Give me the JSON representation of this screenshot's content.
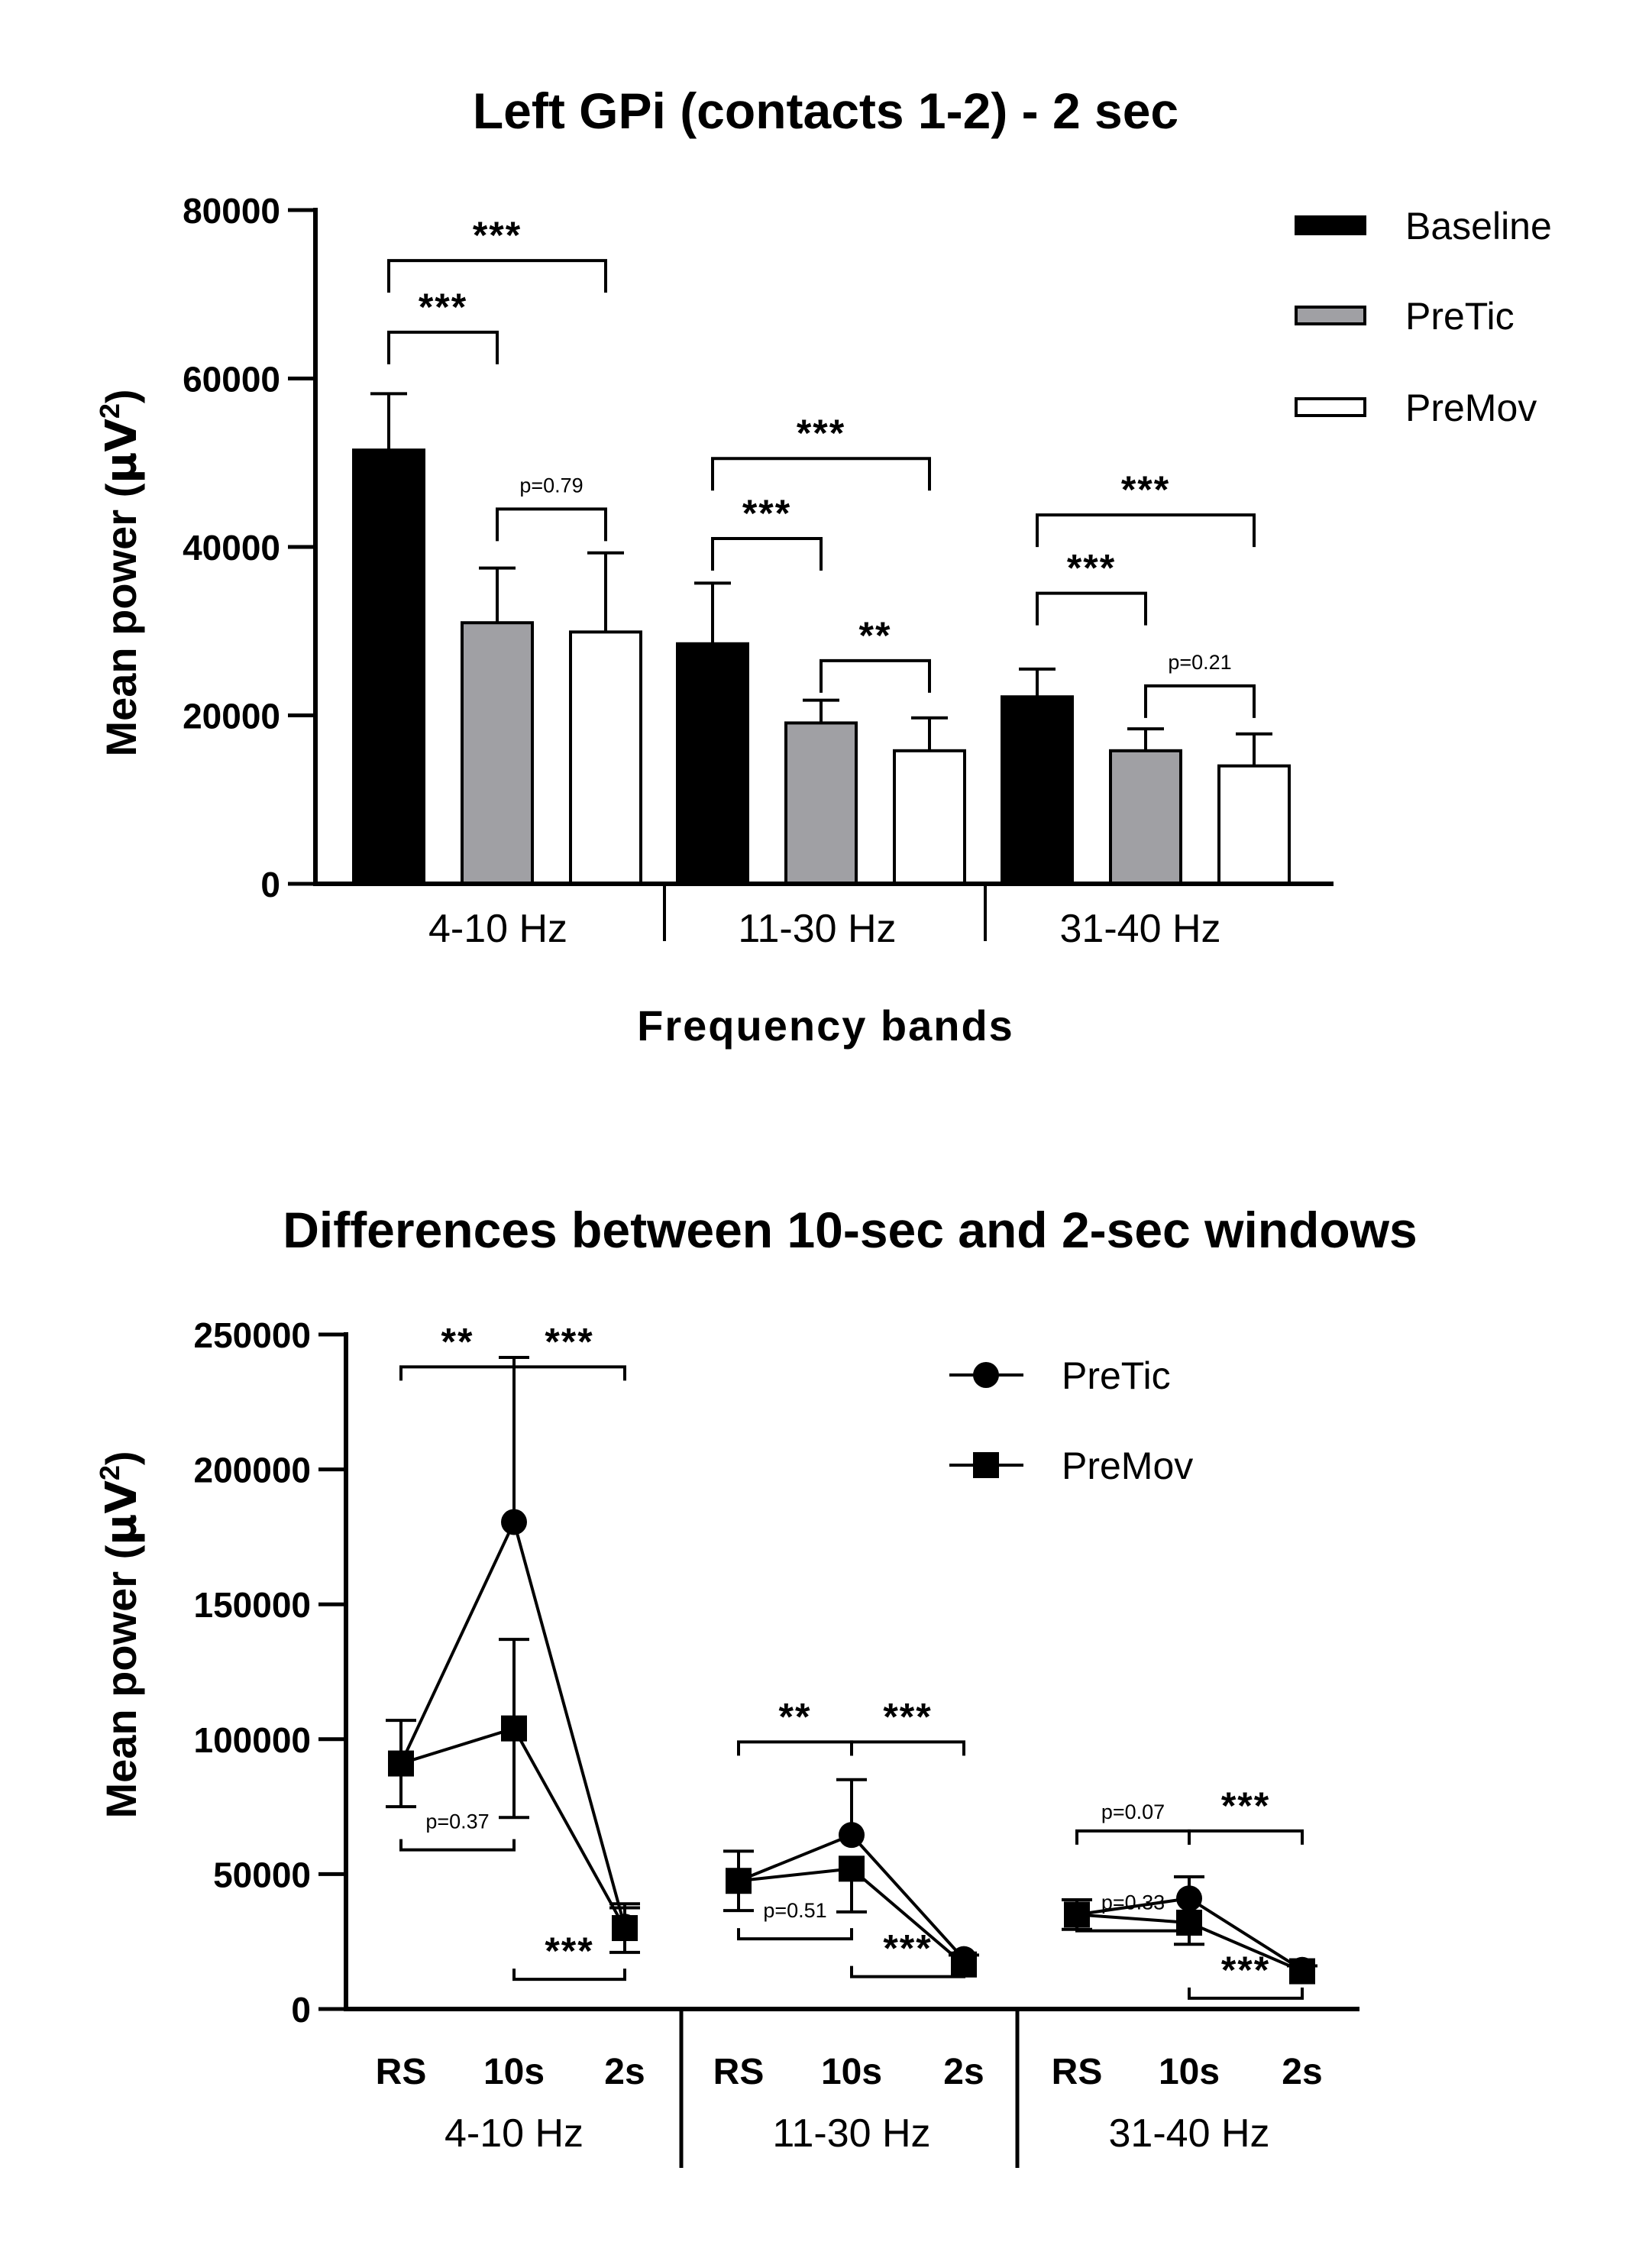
{
  "chart_data": [
    {
      "type": "bar",
      "title": "Left GPi (contacts 1-2) - 2 sec",
      "xlabel": "Frequency bands",
      "ylabel": "Mean power (µV²)",
      "ylabel_main": "Mean power (",
      "ylabel_unit": "µV",
      "ylabel_sup": "2",
      "ylabel_close": ")",
      "ylim": [
        0,
        80000
      ],
      "yticks": [
        "0",
        "20000",
        "40000",
        "60000",
        "80000"
      ],
      "ytick_values": [
        0,
        20000,
        40000,
        60000,
        80000
      ],
      "categories": [
        "4-10 Hz",
        "11-30 Hz",
        "31-40 Hz"
      ],
      "legend_position": "top-right",
      "series": [
        {
          "name": "Baseline",
          "color": "#000000",
          "values": [
            51500,
            28500,
            22200
          ],
          "err": [
            6700,
            7200,
            3300
          ]
        },
        {
          "name": "PreTic",
          "color": "#a0a0a4",
          "values": [
            31000,
            19100,
            15800
          ],
          "err": [
            6500,
            2700,
            2600
          ]
        },
        {
          "name": "PreMov",
          "color": "#ffffff",
          "values": [
            29900,
            15800,
            14000
          ],
          "err": [
            9400,
            3900,
            3800
          ]
        }
      ],
      "annotations": [
        {
          "group": 0,
          "from": 0,
          "to": 2,
          "y": 74000,
          "label": "***"
        },
        {
          "group": 0,
          "from": 0,
          "to": 1,
          "y": 65500,
          "label": "***"
        },
        {
          "group": 0,
          "from": 1,
          "to": 2,
          "y": 44500,
          "label": "p=0.79"
        },
        {
          "group": 1,
          "from": 0,
          "to": 2,
          "y": 50500,
          "label": "***"
        },
        {
          "group": 1,
          "from": 0,
          "to": 1,
          "y": 41000,
          "label": "***"
        },
        {
          "group": 1,
          "from": 1,
          "to": 2,
          "y": 26500,
          "label": "**"
        },
        {
          "group": 2,
          "from": 0,
          "to": 2,
          "y": 43800,
          "label": "***"
        },
        {
          "group": 2,
          "from": 0,
          "to": 1,
          "y": 34500,
          "label": "***"
        },
        {
          "group": 2,
          "from": 1,
          "to": 2,
          "y": 23500,
          "label": "p=0.21"
        }
      ]
    },
    {
      "type": "line",
      "title": "Differences between 10-sec and 2-sec windows",
      "ylabel": "Mean power (µV²)",
      "ylabel_main": "Mean power (",
      "ylabel_unit": "µV",
      "ylabel_sup": "2",
      "ylabel_close": ")",
      "ylim": [
        0,
        250000
      ],
      "yticks": [
        "0",
        "50000",
        "100000",
        "150000",
        "200000",
        "250000"
      ],
      "ytick_values": [
        0,
        50000,
        100000,
        150000,
        200000,
        250000
      ],
      "x": [
        "RS",
        "10s",
        "2s"
      ],
      "groups": [
        "4-10 Hz",
        "11-30 Hz",
        "31-40 Hz"
      ],
      "legend_position": "top-right",
      "series": [
        {
          "name": "PreTic",
          "marker": "circle",
          "values": [
            [
              91000,
              180500,
              30500
            ],
            [
              47500,
              64500,
              18500
            ],
            [
              35000,
              41000,
              14500
            ]
          ],
          "err_hi": [
            [
              16000,
              61000,
              7000
            ],
            [
              11000,
              20500,
              1500
            ],
            [
              5500,
              8000,
              1500
            ]
          ],
          "err_lo": [
            [
              16000,
              0,
              0
            ],
            [
              11000,
              0,
              0
            ],
            [
              5500,
              0,
              0
            ]
          ]
        },
        {
          "name": "PreMov",
          "marker": "square",
          "values": [
            [
              91000,
              104000,
              30000
            ],
            [
              47500,
              52000,
              16500
            ],
            [
              35000,
              32000,
              14000
            ]
          ],
          "err_hi": [
            [
              0,
              33000,
              9000
            ],
            [
              0,
              0,
              0
            ],
            [
              0,
              0,
              0
            ]
          ],
          "err_lo": [
            [
              0,
              33000,
              9000
            ],
            [
              0,
              16000,
              0
            ],
            [
              0,
              8000,
              0
            ]
          ]
        }
      ],
      "annotations_above": [
        {
          "group": 0,
          "from": 0,
          "to": 1,
          "y": 238000,
          "label": "**"
        },
        {
          "group": 0,
          "from": 1,
          "to": 2,
          "y": 238000,
          "label": "***"
        },
        {
          "group": 1,
          "from": 0,
          "to": 1,
          "y": 99000,
          "label": "**"
        },
        {
          "group": 1,
          "from": 1,
          "to": 2,
          "y": 99000,
          "label": "***"
        },
        {
          "group": 2,
          "from": 0,
          "to": 1,
          "y": 66000,
          "label": "p=0.07"
        },
        {
          "group": 2,
          "from": 1,
          "to": 2,
          "y": 66000,
          "label": "***"
        }
      ],
      "annotations_below": [
        {
          "group": 0,
          "from": 0,
          "to": 1,
          "y": 59000,
          "label": "p=0.37"
        },
        {
          "group": 0,
          "from": 1,
          "to": 2,
          "y": 11000,
          "label": "***"
        },
        {
          "group": 1,
          "from": 0,
          "to": 1,
          "y": 26000,
          "label": "p=0.51"
        },
        {
          "group": 1,
          "from": 1,
          "to": 2,
          "y": 12000,
          "label": "***"
        },
        {
          "group": 2,
          "from": 0,
          "to": 1,
          "y": 29000,
          "label": "p=0.33"
        },
        {
          "group": 2,
          "from": 1,
          "to": 2,
          "y": 4000,
          "label": "***"
        }
      ]
    }
  ]
}
